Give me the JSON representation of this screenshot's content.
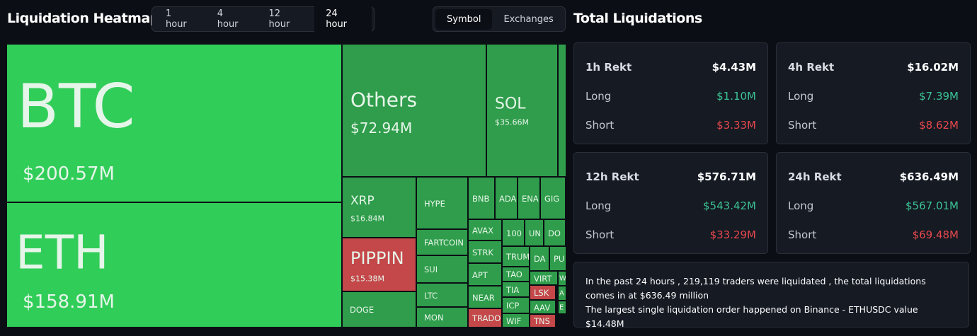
{
  "header": {
    "title": "Liquidation Heatmap",
    "time_tabs": [
      "1 hour",
      "4 hour",
      "12 hour",
      "24 hour"
    ],
    "active_tab": "24 hour",
    "view_tabs": [
      "Symbol",
      "Exchanges"
    ],
    "active_view": "Symbol"
  },
  "heatmap": {
    "tiles": [
      {
        "label": "BTC",
        "value": "$200.57M",
        "color": "#31cd59"
      },
      {
        "label": "ETH",
        "value": "$158.91M",
        "color": "#31cd59"
      },
      {
        "label": "Others",
        "value": "$72.94M",
        "color": "#2f9d4b"
      },
      {
        "label": "SOL",
        "value": "$35.66M",
        "color": "#2f9d4b"
      },
      {
        "label": "XRP",
        "value": "$16.84M",
        "color": "#2f9d4b"
      },
      {
        "label": "PIPPIN",
        "value": "$15.38M",
        "color": "#c4474a"
      },
      {
        "label": "DOGE",
        "color": "#2f9d4b"
      },
      {
        "label": "HYPE",
        "color": "#2f9d4b"
      },
      {
        "label": "FARTCOIN",
        "color": "#2f9d4b"
      },
      {
        "label": "SUI",
        "color": "#2f9d4b"
      },
      {
        "label": "LTC",
        "color": "#2f9d4b"
      },
      {
        "label": "MON",
        "color": "#2f9d4b"
      },
      {
        "label": "BNB",
        "color": "#2f9d4b"
      },
      {
        "label": "ADA",
        "color": "#2f9d4b"
      },
      {
        "label": "ENA",
        "color": "#2f9d4b"
      },
      {
        "label": "GIG",
        "color": "#2f9d4b"
      },
      {
        "label": "AVAX",
        "color": "#2f9d4b"
      },
      {
        "label": "STRK",
        "color": "#2f9d4b"
      },
      {
        "label": "APT",
        "color": "#2f9d4b"
      },
      {
        "label": "NEAR",
        "color": "#2f9d4b"
      },
      {
        "label": "TRADO",
        "color": "#c4474a"
      },
      {
        "label": "100",
        "color": "#2f9d4b"
      },
      {
        "label": "UN",
        "color": "#2f9d4b"
      },
      {
        "label": "DO",
        "color": "#2f9d4b"
      },
      {
        "label": "TRUM",
        "color": "#2f9d4b"
      },
      {
        "label": "TAO",
        "color": "#2f9d4b"
      },
      {
        "label": "TIA",
        "color": "#2f9d4b"
      },
      {
        "label": "ICP",
        "color": "#2f9d4b"
      },
      {
        "label": "WIF",
        "color": "#2f9d4b"
      },
      {
        "label": "DA",
        "color": "#2f9d4b"
      },
      {
        "label": "PU",
        "color": "#2f9d4b"
      },
      {
        "label": "VIRT",
        "color": "#2f9d4b"
      },
      {
        "label": "LSK",
        "color": "#c4474a"
      },
      {
        "label": "AAV",
        "color": "#2f9d4b"
      },
      {
        "label": "TNS",
        "color": "#c4474a"
      },
      {
        "label": "W",
        "color": "#2f9d4b"
      },
      {
        "label": "A",
        "color": "#2f9d4b"
      },
      {
        "label": "E",
        "color": "#2f9d4b"
      }
    ]
  },
  "summary": {
    "title": "Total Liquidations",
    "cards": [
      {
        "title": "1h Rekt",
        "total": "$4.43M",
        "long_label": "Long",
        "long": "$1.10M",
        "short_label": "Short",
        "short": "$3.33M"
      },
      {
        "title": "4h Rekt",
        "total": "$16.02M",
        "long_label": "Long",
        "long": "$7.39M",
        "short_label": "Short",
        "short": "$8.62M"
      },
      {
        "title": "12h Rekt",
        "total": "$576.71M",
        "long_label": "Long",
        "long": "$543.42M",
        "short_label": "Short",
        "short": "$33.29M"
      },
      {
        "title": "24h Rekt",
        "total": "$636.49M",
        "long_label": "Long",
        "long": "$567.01M",
        "short_label": "Short",
        "short": "$69.48M"
      }
    ],
    "note": [
      "In the past 24 hours , 219,119 traders were liquidated , the total liquidations comes in at $636.49 million",
      "The largest single liquidation order happened on Binance - ETHUSDC value $14.48M"
    ]
  }
}
